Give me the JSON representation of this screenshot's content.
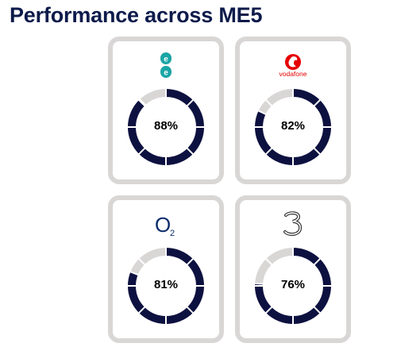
{
  "title": "Performance across ME5",
  "colors": {
    "filled": "#0d1140",
    "empty": "#d9d6d6",
    "card_border": "#d9d6d6",
    "title": "#0d1b4b",
    "vodafone_red": "#e60000",
    "ee_teal": "#1ba5a5",
    "o2_blue": "#0a2c6b"
  },
  "operators": [
    {
      "logo": "ee-logo",
      "logo_icon": "ee-icon",
      "percent_label": "88%"
    },
    {
      "logo": "vodafone-logo",
      "logo_text": "vodafone",
      "logo_icon": "vodafone-speechmark-icon",
      "percent_label": "82%"
    },
    {
      "logo": "o2-logo",
      "logo_text": "O",
      "logo_sub": "2",
      "logo_icon": "o2-icon",
      "percent_label": "81%"
    },
    {
      "logo": "three-logo",
      "logo_icon": "three-icon",
      "percent_label": "76%"
    }
  ],
  "chart_data": {
    "type": "donut",
    "segments_per_ring": 8,
    "categories": [
      "EE",
      "Vodafone",
      "O2",
      "Three"
    ],
    "values": [
      88,
      82,
      81,
      76
    ],
    "unit": "%",
    "max": 100
  }
}
